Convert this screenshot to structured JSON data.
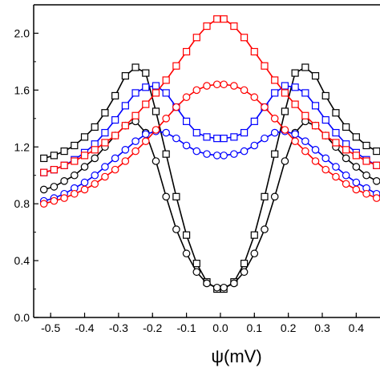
{
  "chart_data": {
    "type": "line",
    "xlabel": "ψ(mV)",
    "ylabel": "",
    "xlim": [
      -0.55,
      0.47
    ],
    "ylim": [
      0.0,
      2.2
    ],
    "xticks": [
      -0.5,
      -0.4,
      -0.3,
      -0.2,
      -0.1,
      0.0,
      0.1,
      0.2,
      0.3,
      0.4
    ],
    "xtick_labels": [
      "-0.5",
      "-0.4",
      "-0.3",
      "-0.2",
      "-0.1",
      "0.0",
      "0.1",
      "0.2",
      "0.3",
      "0.4"
    ],
    "yticks": [
      0.0,
      0.4,
      0.8,
      1.2,
      1.6,
      2.0
    ],
    "ytick_labels": [
      "0.0",
      "0.4",
      "0.8",
      "1.2",
      "1.6",
      "2.0"
    ],
    "grid": false,
    "series": [
      {
        "color": "#000000",
        "marker": "square",
        "x": [
          -0.52,
          -0.49,
          -0.46,
          -0.43,
          -0.4,
          -0.37,
          -0.34,
          -0.31,
          -0.28,
          -0.25,
          -0.22,
          -0.19,
          -0.16,
          -0.13,
          -0.1,
          -0.07,
          -0.04,
          -0.01,
          0.01,
          0.04,
          0.07,
          0.1,
          0.13,
          0.16,
          0.19,
          0.22,
          0.25,
          0.28,
          0.31,
          0.34,
          0.37,
          0.4,
          0.43,
          0.46
        ],
        "y": [
          1.12,
          1.14,
          1.17,
          1.21,
          1.27,
          1.34,
          1.44,
          1.56,
          1.7,
          1.76,
          1.72,
          1.45,
          1.15,
          0.85,
          0.58,
          0.38,
          0.25,
          0.2,
          0.2,
          0.25,
          0.38,
          0.58,
          0.85,
          1.15,
          1.45,
          1.72,
          1.76,
          1.7,
          1.56,
          1.44,
          1.34,
          1.27,
          1.21,
          1.17
        ]
      },
      {
        "color": "#000000",
        "marker": "circle",
        "x": [
          -0.52,
          -0.49,
          -0.46,
          -0.43,
          -0.4,
          -0.37,
          -0.34,
          -0.31,
          -0.28,
          -0.25,
          -0.22,
          -0.19,
          -0.16,
          -0.13,
          -0.1,
          -0.07,
          -0.04,
          -0.01,
          0.01,
          0.04,
          0.07,
          0.1,
          0.13,
          0.16,
          0.19,
          0.22,
          0.25,
          0.28,
          0.31,
          0.34,
          0.37,
          0.4,
          0.43,
          0.46
        ],
        "y": [
          0.9,
          0.92,
          0.96,
          1.0,
          1.06,
          1.12,
          1.2,
          1.28,
          1.35,
          1.38,
          1.3,
          1.1,
          0.85,
          0.62,
          0.45,
          0.32,
          0.24,
          0.21,
          0.21,
          0.24,
          0.32,
          0.45,
          0.62,
          0.85,
          1.1,
          1.3,
          1.38,
          1.35,
          1.28,
          1.2,
          1.12,
          1.06,
          1.0,
          0.96
        ]
      },
      {
        "color": "#0000ff",
        "marker": "square",
        "x": [
          -0.52,
          -0.49,
          -0.46,
          -0.43,
          -0.4,
          -0.37,
          -0.34,
          -0.31,
          -0.28,
          -0.25,
          -0.22,
          -0.19,
          -0.16,
          -0.13,
          -0.1,
          -0.07,
          -0.04,
          -0.01,
          0.01,
          0.04,
          0.07,
          0.1,
          0.13,
          0.16,
          0.19,
          0.22,
          0.25,
          0.28,
          0.31,
          0.34,
          0.37,
          0.4,
          0.43,
          0.46
        ],
        "y": [
          1.02,
          1.04,
          1.07,
          1.11,
          1.16,
          1.22,
          1.3,
          1.39,
          1.49,
          1.58,
          1.62,
          1.63,
          1.58,
          1.48,
          1.38,
          1.3,
          1.27,
          1.26,
          1.26,
          1.27,
          1.3,
          1.38,
          1.48,
          1.58,
          1.63,
          1.62,
          1.58,
          1.49,
          1.39,
          1.3,
          1.22,
          1.16,
          1.11,
          1.07
        ]
      },
      {
        "color": "#0000ff",
        "marker": "circle",
        "x": [
          -0.52,
          -0.49,
          -0.46,
          -0.43,
          -0.4,
          -0.37,
          -0.34,
          -0.31,
          -0.28,
          -0.25,
          -0.22,
          -0.19,
          -0.16,
          -0.13,
          -0.1,
          -0.07,
          -0.04,
          -0.01,
          0.01,
          0.04,
          0.07,
          0.1,
          0.13,
          0.16,
          0.19,
          0.22,
          0.25,
          0.28,
          0.31,
          0.34,
          0.37,
          0.4,
          0.43,
          0.46
        ],
        "y": [
          0.82,
          0.84,
          0.87,
          0.91,
          0.95,
          1.0,
          1.06,
          1.12,
          1.18,
          1.24,
          1.29,
          1.31,
          1.3,
          1.26,
          1.21,
          1.17,
          1.15,
          1.14,
          1.14,
          1.15,
          1.17,
          1.21,
          1.26,
          1.3,
          1.31,
          1.29,
          1.24,
          1.18,
          1.12,
          1.06,
          1.0,
          0.95,
          0.91,
          0.87
        ]
      },
      {
        "color": "#ff0000",
        "marker": "square",
        "x": [
          -0.52,
          -0.49,
          -0.46,
          -0.43,
          -0.4,
          -0.37,
          -0.34,
          -0.31,
          -0.28,
          -0.25,
          -0.22,
          -0.19,
          -0.16,
          -0.13,
          -0.1,
          -0.07,
          -0.04,
          -0.01,
          0.01,
          0.04,
          0.07,
          0.1,
          0.13,
          0.16,
          0.19,
          0.22,
          0.25,
          0.28,
          0.31,
          0.34,
          0.37,
          0.4,
          0.43,
          0.46
        ],
        "y": [
          1.02,
          1.04,
          1.07,
          1.1,
          1.14,
          1.18,
          1.23,
          1.28,
          1.35,
          1.42,
          1.5,
          1.58,
          1.67,
          1.77,
          1.87,
          1.97,
          2.05,
          2.1,
          2.1,
          2.05,
          1.97,
          1.87,
          1.77,
          1.67,
          1.58,
          1.5,
          1.42,
          1.35,
          1.28,
          1.23,
          1.18,
          1.14,
          1.1,
          1.07
        ]
      },
      {
        "color": "#ff0000",
        "marker": "circle",
        "x": [
          -0.52,
          -0.49,
          -0.46,
          -0.43,
          -0.4,
          -0.37,
          -0.34,
          -0.31,
          -0.28,
          -0.25,
          -0.22,
          -0.19,
          -0.16,
          -0.13,
          -0.1,
          -0.07,
          -0.04,
          -0.01,
          0.01,
          0.04,
          0.07,
          0.1,
          0.13,
          0.16,
          0.19,
          0.22,
          0.25,
          0.28,
          0.31,
          0.34,
          0.37,
          0.4,
          0.43,
          0.46
        ],
        "y": [
          0.8,
          0.82,
          0.84,
          0.87,
          0.9,
          0.94,
          0.99,
          1.04,
          1.1,
          1.17,
          1.24,
          1.32,
          1.4,
          1.48,
          1.55,
          1.6,
          1.63,
          1.64,
          1.64,
          1.63,
          1.6,
          1.55,
          1.48,
          1.4,
          1.32,
          1.24,
          1.17,
          1.1,
          1.04,
          0.99,
          0.94,
          0.9,
          0.87,
          0.84
        ]
      }
    ]
  }
}
